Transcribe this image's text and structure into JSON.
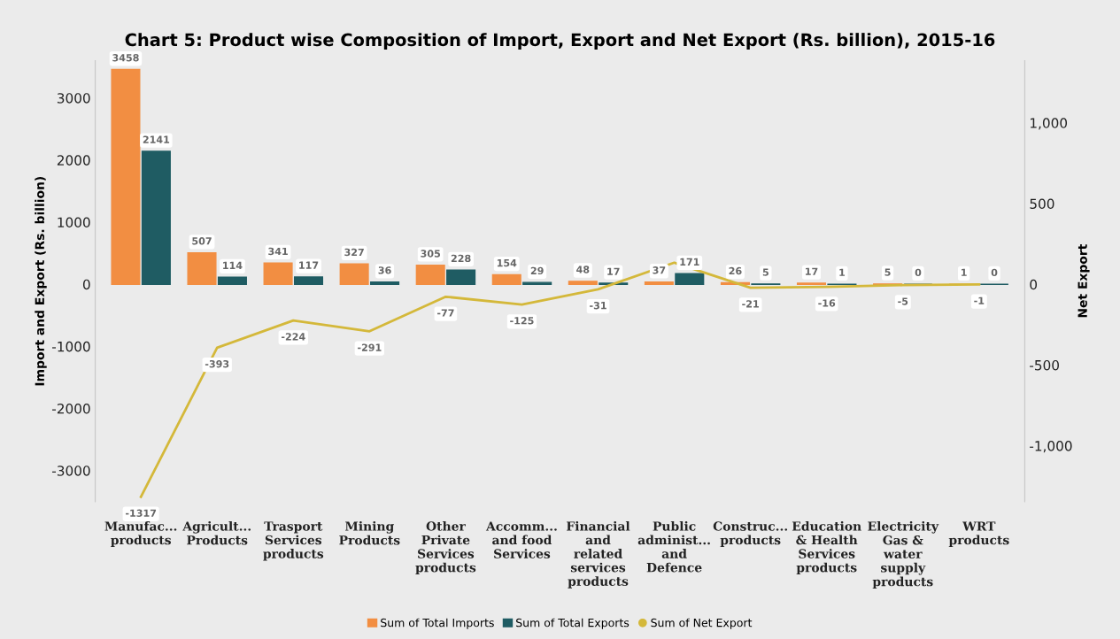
{
  "chart_data": {
    "type": "bar",
    "title": "Chart 5: Product wise Composition of Import, Export and Net Export (Rs. billion), 2015-16",
    "ylabel": "Import and Export (Rs. billion)",
    "y2label": "Net Export",
    "categories": [
      "Manufac...\nproducts",
      "Agricult...\nProducts",
      "Trasport\nServices\nproducts",
      "Mining\nProducts",
      "Other\nPrivate\nServices\nproducts",
      "Accomm...\nand food\nServices",
      "Financial\nand\nrelated\nservices\nproducts",
      "Public\nadminist...\nand\nDefence",
      "Construc...\nproducts",
      "Education\n& Health\nServices\nproducts",
      "Electricity\nGas &\nwater\nsupply\nproducts",
      "WRT\nproducts"
    ],
    "series": [
      {
        "name": "Sum of Total Imports",
        "color": "#f28e42",
        "values": [
          3458,
          507,
          341,
          327,
          305,
          154,
          48,
          37,
          26,
          17,
          5,
          1
        ]
      },
      {
        "name": "Sum of Total Exports",
        "color": "#1f5c63",
        "values": [
          2141,
          114,
          117,
          36,
          228,
          29,
          17,
          171,
          5,
          1,
          0,
          0
        ]
      },
      {
        "name": "Sum of Net Export",
        "type": "line",
        "axis": "y2",
        "color": "#d4b83a",
        "values": [
          -1317,
          -393,
          -224,
          -291,
          -77,
          -125,
          -31,
          134,
          -21,
          -16,
          -5,
          -1
        ],
        "value_labels": [
          "-1317",
          "-393",
          "-224",
          "-291",
          "-77",
          "-125",
          "-31",
          null,
          "-21",
          "-16",
          "-5",
          "-1"
        ]
      }
    ],
    "ylim": [
      -3500,
      3600
    ],
    "yticks": [
      -3000,
      -2000,
      -1000,
      0,
      1000,
      2000,
      3000
    ],
    "y2lim": [
      -1346,
      1385
    ],
    "y2ticks": [
      {
        "value": -1000,
        "label": "-1,000"
      },
      -500,
      0,
      500,
      {
        "value": 1000,
        "label": "1,000"
      }
    ],
    "data_labels": true,
    "grid": false,
    "legend": "bottom",
    "marker": "none",
    "line_style": "solid"
  }
}
